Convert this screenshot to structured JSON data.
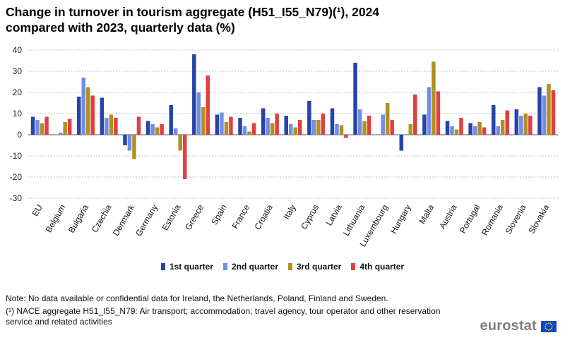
{
  "title_line1": "Change in turnover in tourism aggregate (H51_I55_N79)(¹), 2024",
  "title_line2": "compared with 2023, quarterly data (%)",
  "chart_data": {
    "type": "bar",
    "title": "Change in turnover in tourism aggregate (H51_I55_N79)(¹), 2024 compared with 2023, quarterly data (%)",
    "xlabel": "",
    "ylabel": "",
    "ylim": [
      -30,
      40
    ],
    "yticks": [
      40,
      30,
      20,
      10,
      0,
      -10,
      -20,
      -30
    ],
    "grid": true,
    "legend_position": "bottom",
    "categories": [
      "EU",
      "Belgium",
      "Bulgaria",
      "Czechia",
      "Denmark",
      "Germany",
      "Estonia",
      "Greece",
      "Spain",
      "France",
      "Croatia",
      "Italy",
      "Cyprus",
      "Latvia",
      "Lithuania",
      "Luxembourg",
      "Hungary",
      "Malta",
      "Austria",
      "Portugal",
      "Romania",
      "Slovenia",
      "Slovakia"
    ],
    "series": [
      {
        "name": "1st quarter",
        "color": "#2644a7",
        "values": [
          8.5,
          null,
          18.0,
          17.5,
          -5.0,
          6.5,
          14.0,
          38.0,
          9.5,
          8.0,
          12.5,
          9.0,
          16.0,
          12.5,
          34.0,
          null,
          -7.5,
          9.5,
          6.5,
          5.5,
          14.0,
          12.0,
          22.5
        ]
      },
      {
        "name": "2nd quarter",
        "color": "#6f8ee7",
        "values": [
          7.0,
          1.0,
          27.0,
          8.0,
          -7.5,
          5.0,
          3.0,
          20.0,
          10.5,
          4.0,
          8.0,
          5.0,
          7.0,
          5.0,
          12.0,
          9.5,
          null,
          22.5,
          4.0,
          4.0,
          4.0,
          9.0,
          18.5
        ]
      },
      {
        "name": "3rd quarter",
        "color": "#b09120",
        "values": [
          5.5,
          6.0,
          22.5,
          9.5,
          -11.5,
          3.5,
          -7.5,
          13.0,
          6.0,
          1.5,
          5.5,
          3.5,
          7.0,
          4.5,
          6.5,
          15.0,
          5.0,
          34.5,
          2.5,
          6.0,
          7.0,
          10.0,
          24.0
        ]
      },
      {
        "name": "4th quarter",
        "color": "#e04040",
        "values": [
          8.5,
          7.5,
          18.5,
          8.0,
          8.5,
          5.0,
          -21.0,
          28.0,
          8.5,
          5.5,
          10.0,
          7.0,
          10.0,
          -1.5,
          9.0,
          7.0,
          19.0,
          20.5,
          8.0,
          3.5,
          11.5,
          9.0,
          21.0
        ]
      }
    ]
  },
  "legend": [
    {
      "label": "1st quarter",
      "color": "#2644a7"
    },
    {
      "label": "2nd quarter",
      "color": "#6f8ee7"
    },
    {
      "label": "3rd quarter",
      "color": "#b09120"
    },
    {
      "label": "4th quarter",
      "color": "#e04040"
    }
  ],
  "notes": {
    "note": "Note: No data available or confidential data for Ireland, the Netherlands, Poland, Finland and Sweden.",
    "footnote": "(¹) NACE aggregate H51_I55_N79: Air transport; accommodation; travel agency, tour operator and other reservation service and related activities"
  },
  "logo": {
    "text": "eurostat",
    "icon": "eu-flag-icon"
  }
}
